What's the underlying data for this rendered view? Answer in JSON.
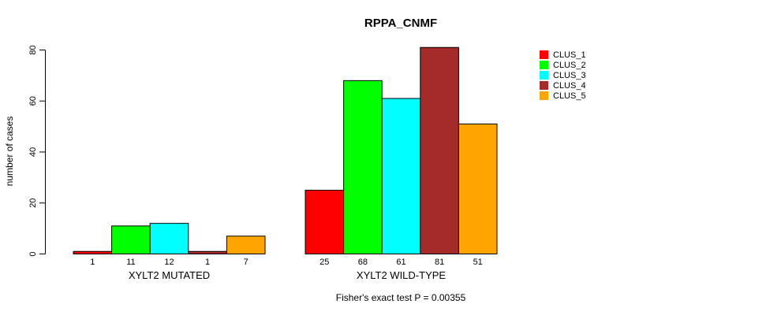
{
  "chart": {
    "title": "RPPA_CNMF",
    "ylabel": "number of cases",
    "caption": "Fisher's exact test P = 0.00355"
  },
  "chart_data": {
    "type": "bar",
    "title": "RPPA_CNMF",
    "xlabel": "",
    "ylabel": "number of cases",
    "categories": [
      "XYLT2 MUTATED",
      "XYLT2 WILD-TYPE"
    ],
    "series": [
      {
        "name": "CLUS_1",
        "color": "#FF0000",
        "values": [
          1,
          25
        ]
      },
      {
        "name": "CLUS_2",
        "color": "#00FF00",
        "values": [
          11,
          68
        ]
      },
      {
        "name": "CLUS_3",
        "color": "#00FFFF",
        "values": [
          12,
          61
        ]
      },
      {
        "name": "CLUS_4",
        "color": "#A52A2A",
        "values": [
          1,
          81
        ]
      },
      {
        "name": "CLUS_5",
        "color": "#FFA500",
        "values": [
          7,
          51
        ]
      }
    ],
    "bar_value_labels": {
      "XYLT2 MUTATED": [
        1,
        11,
        12,
        1,
        7
      ],
      "XYLT2 WILD-TYPE": [
        25,
        68,
        61,
        81,
        51
      ]
    },
    "ylim": [
      0,
      80
    ],
    "yticks": [
      0,
      20,
      40,
      60,
      80
    ],
    "grid": false,
    "legend_position": "right",
    "bar_border_color": "#000000",
    "annotation": "Fisher's exact test P = 0.00355"
  }
}
